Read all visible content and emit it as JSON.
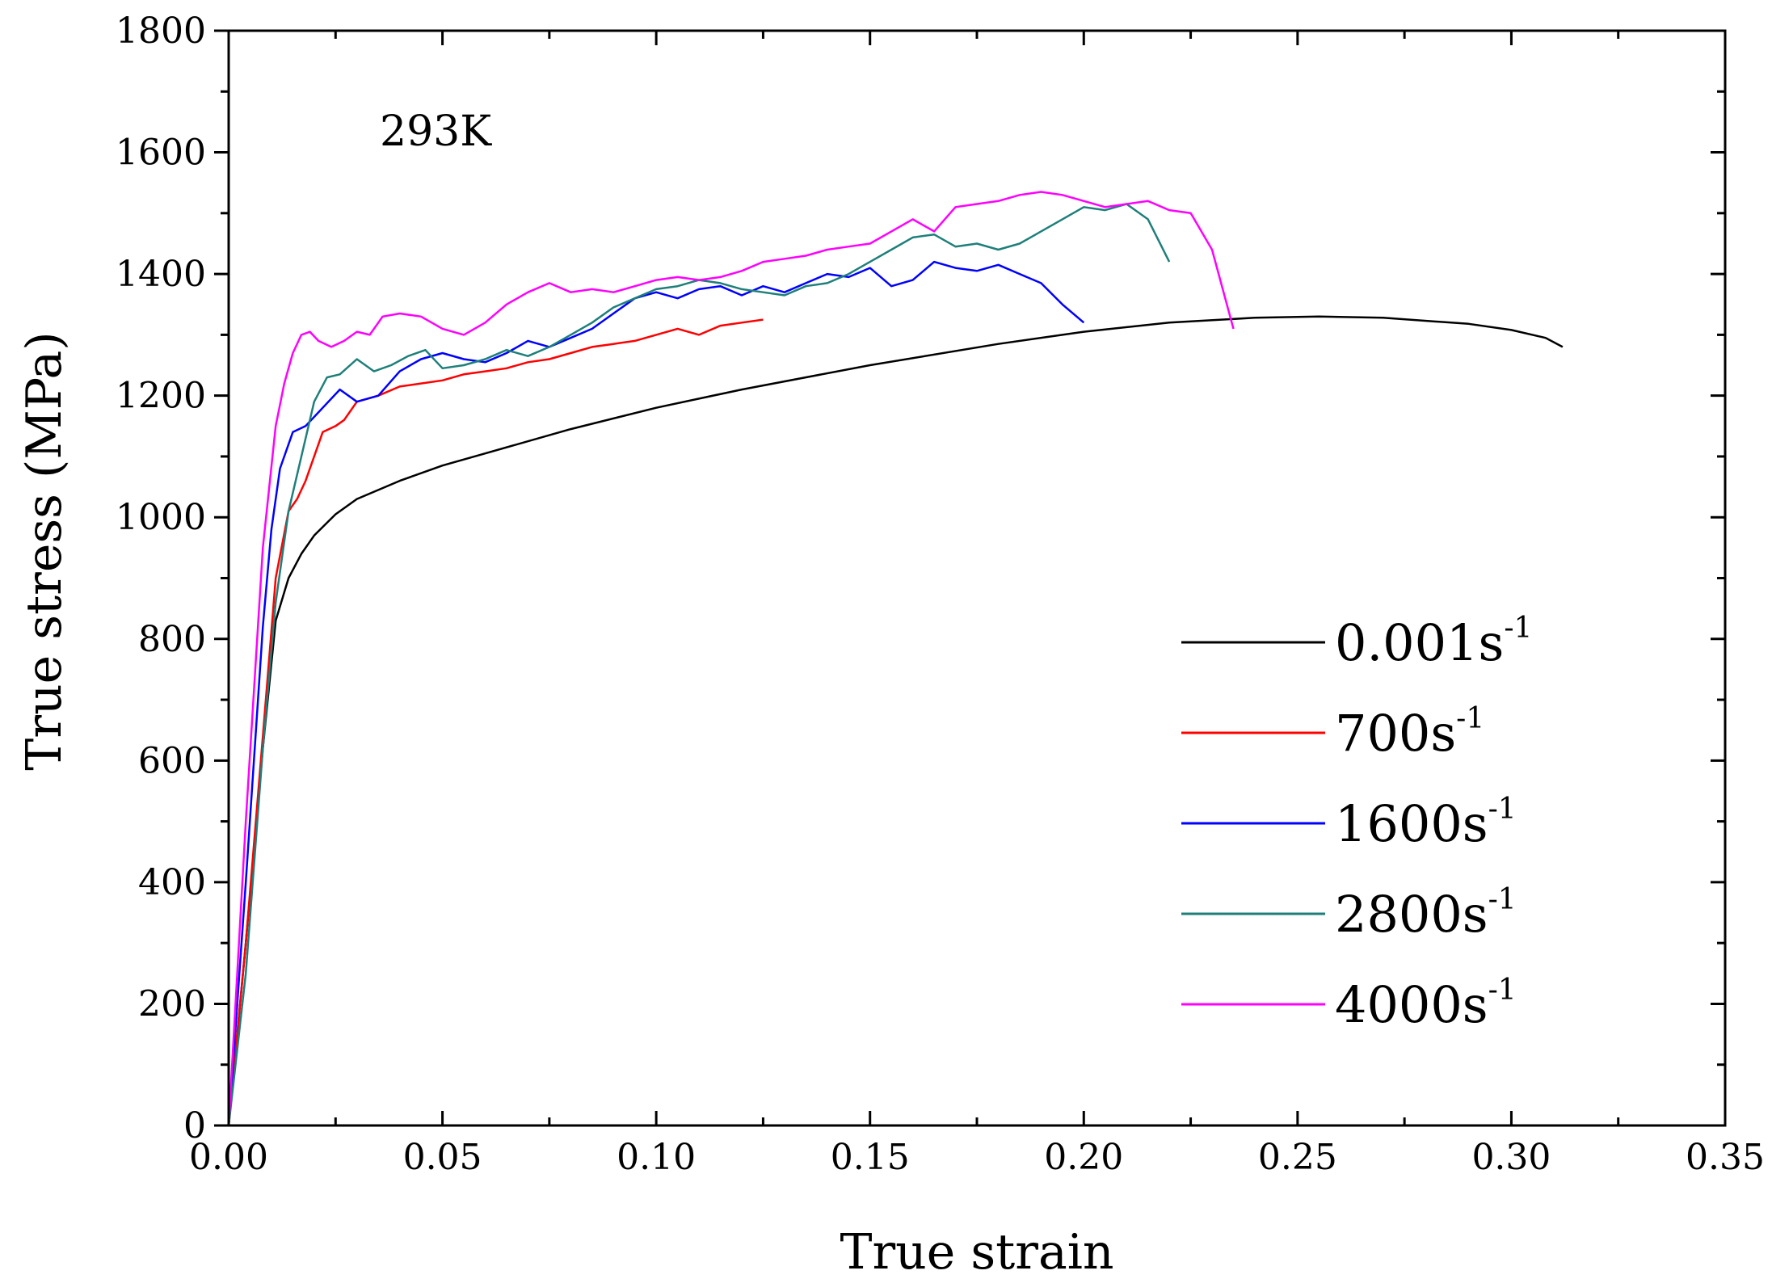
{
  "chart_data": {
    "type": "line",
    "title": "",
    "xlabel": "True strain",
    "ylabel": "True stress (MPa)",
    "xlim": [
      0,
      0.35
    ],
    "ylim": [
      0,
      1800
    ],
    "xticks": [
      0,
      0.05,
      0.1,
      0.15,
      0.2,
      0.25,
      0.3,
      0.35
    ],
    "xtick_labels": [
      "0.00",
      "0.05",
      "0.10",
      "0.15",
      "0.20",
      "0.25",
      "0.30",
      "0.35"
    ],
    "yticks": [
      0,
      200,
      400,
      600,
      800,
      1000,
      1200,
      1400,
      1600,
      1800
    ],
    "ytick_labels": [
      "0",
      "200",
      "400",
      "600",
      "800",
      "1000",
      "1200",
      "1400",
      "1600",
      "1800"
    ],
    "annotation": "293K",
    "legend_position": "lower-right",
    "grid": false,
    "series": [
      {
        "name": "0.001s",
        "label_base": "0.001s",
        "label_sup": "-1",
        "color": "#000000",
        "x": [
          0,
          0.004,
          0.008,
          0.011,
          0.014,
          0.017,
          0.02,
          0.025,
          0.03,
          0.04,
          0.05,
          0.06,
          0.08,
          0.1,
          0.12,
          0.15,
          0.18,
          0.2,
          0.22,
          0.24,
          0.255,
          0.27,
          0.29,
          0.3,
          0.308,
          0.312
        ],
        "y": [
          0,
          300,
          620,
          830,
          900,
          940,
          970,
          1005,
          1030,
          1060,
          1085,
          1105,
          1145,
          1180,
          1210,
          1250,
          1285,
          1305,
          1320,
          1328,
          1330,
          1328,
          1318,
          1308,
          1295,
          1280
        ]
      },
      {
        "name": "700s",
        "label_base": "700s",
        "label_sup": "-1",
        "color": "#ff0000",
        "x": [
          0,
          0.004,
          0.008,
          0.011,
          0.014,
          0.016,
          0.018,
          0.02,
          0.022,
          0.025,
          0.027,
          0.03,
          0.035,
          0.04,
          0.045,
          0.05,
          0.055,
          0.06,
          0.065,
          0.07,
          0.075,
          0.08,
          0.085,
          0.09,
          0.095,
          0.1,
          0.105,
          0.11,
          0.115,
          0.12,
          0.125
        ],
        "y": [
          0,
          300,
          640,
          900,
          1010,
          1030,
          1060,
          1100,
          1140,
          1150,
          1160,
          1190,
          1200,
          1215,
          1220,
          1225,
          1235,
          1240,
          1245,
          1255,
          1260,
          1270,
          1280,
          1285,
          1290,
          1300,
          1310,
          1300,
          1315,
          1320,
          1325
        ]
      },
      {
        "name": "1600s",
        "label_base": "1600s",
        "label_sup": "-1",
        "color": "#0000ff",
        "x": [
          0,
          0.004,
          0.008,
          0.01,
          0.012,
          0.015,
          0.018,
          0.022,
          0.026,
          0.03,
          0.035,
          0.04,
          0.045,
          0.05,
          0.055,
          0.06,
          0.065,
          0.07,
          0.075,
          0.08,
          0.085,
          0.09,
          0.095,
          0.1,
          0.105,
          0.11,
          0.115,
          0.12,
          0.125,
          0.13,
          0.135,
          0.14,
          0.145,
          0.15,
          0.155,
          0.16,
          0.165,
          0.17,
          0.175,
          0.18,
          0.185,
          0.19,
          0.195,
          0.2
        ],
        "y": [
          0,
          400,
          820,
          980,
          1080,
          1140,
          1150,
          1180,
          1210,
          1190,
          1200,
          1240,
          1260,
          1270,
          1260,
          1255,
          1270,
          1290,
          1280,
          1295,
          1310,
          1335,
          1360,
          1370,
          1360,
          1375,
          1380,
          1365,
          1380,
          1370,
          1385,
          1400,
          1395,
          1410,
          1380,
          1390,
          1420,
          1410,
          1405,
          1415,
          1400,
          1385,
          1350,
          1320
        ]
      },
      {
        "name": "2800s",
        "label_base": "2800s",
        "label_sup": "-1",
        "color": "#1e7f7a",
        "x": [
          0,
          0.004,
          0.008,
          0.011,
          0.014,
          0.017,
          0.02,
          0.023,
          0.026,
          0.03,
          0.034,
          0.038,
          0.042,
          0.046,
          0.05,
          0.055,
          0.06,
          0.065,
          0.07,
          0.075,
          0.08,
          0.085,
          0.09,
          0.095,
          0.1,
          0.105,
          0.11,
          0.115,
          0.12,
          0.125,
          0.13,
          0.135,
          0.14,
          0.145,
          0.15,
          0.155,
          0.16,
          0.165,
          0.17,
          0.175,
          0.18,
          0.185,
          0.19,
          0.195,
          0.2,
          0.205,
          0.21,
          0.215,
          0.22
        ],
        "y": [
          0,
          250,
          620,
          860,
          1010,
          1100,
          1190,
          1230,
          1235,
          1260,
          1240,
          1250,
          1265,
          1275,
          1245,
          1250,
          1260,
          1275,
          1265,
          1280,
          1300,
          1320,
          1345,
          1360,
          1375,
          1380,
          1390,
          1385,
          1375,
          1370,
          1365,
          1380,
          1385,
          1400,
          1420,
          1440,
          1460,
          1465,
          1445,
          1450,
          1440,
          1450,
          1470,
          1490,
          1510,
          1505,
          1515,
          1490,
          1420
        ]
      },
      {
        "name": "4000s",
        "label_base": "4000s",
        "label_sup": "-1",
        "color": "#ff00ff",
        "x": [
          0,
          0.004,
          0.008,
          0.011,
          0.013,
          0.015,
          0.017,
          0.019,
          0.021,
          0.024,
          0.027,
          0.03,
          0.033,
          0.036,
          0.04,
          0.045,
          0.05,
          0.055,
          0.06,
          0.065,
          0.07,
          0.075,
          0.08,
          0.085,
          0.09,
          0.095,
          0.1,
          0.105,
          0.11,
          0.115,
          0.12,
          0.125,
          0.13,
          0.135,
          0.14,
          0.145,
          0.15,
          0.155,
          0.16,
          0.165,
          0.17,
          0.175,
          0.18,
          0.185,
          0.19,
          0.195,
          0.2,
          0.205,
          0.21,
          0.215,
          0.22,
          0.225,
          0.23,
          0.235
        ],
        "y": [
          0,
          500,
          950,
          1150,
          1220,
          1270,
          1300,
          1305,
          1290,
          1280,
          1290,
          1305,
          1300,
          1330,
          1335,
          1330,
          1310,
          1300,
          1320,
          1350,
          1370,
          1385,
          1370,
          1375,
          1370,
          1380,
          1390,
          1395,
          1390,
          1395,
          1405,
          1420,
          1425,
          1430,
          1440,
          1445,
          1450,
          1470,
          1490,
          1470,
          1510,
          1515,
          1520,
          1530,
          1535,
          1530,
          1520,
          1510,
          1515,
          1520,
          1505,
          1500,
          1440,
          1310
        ]
      }
    ]
  }
}
